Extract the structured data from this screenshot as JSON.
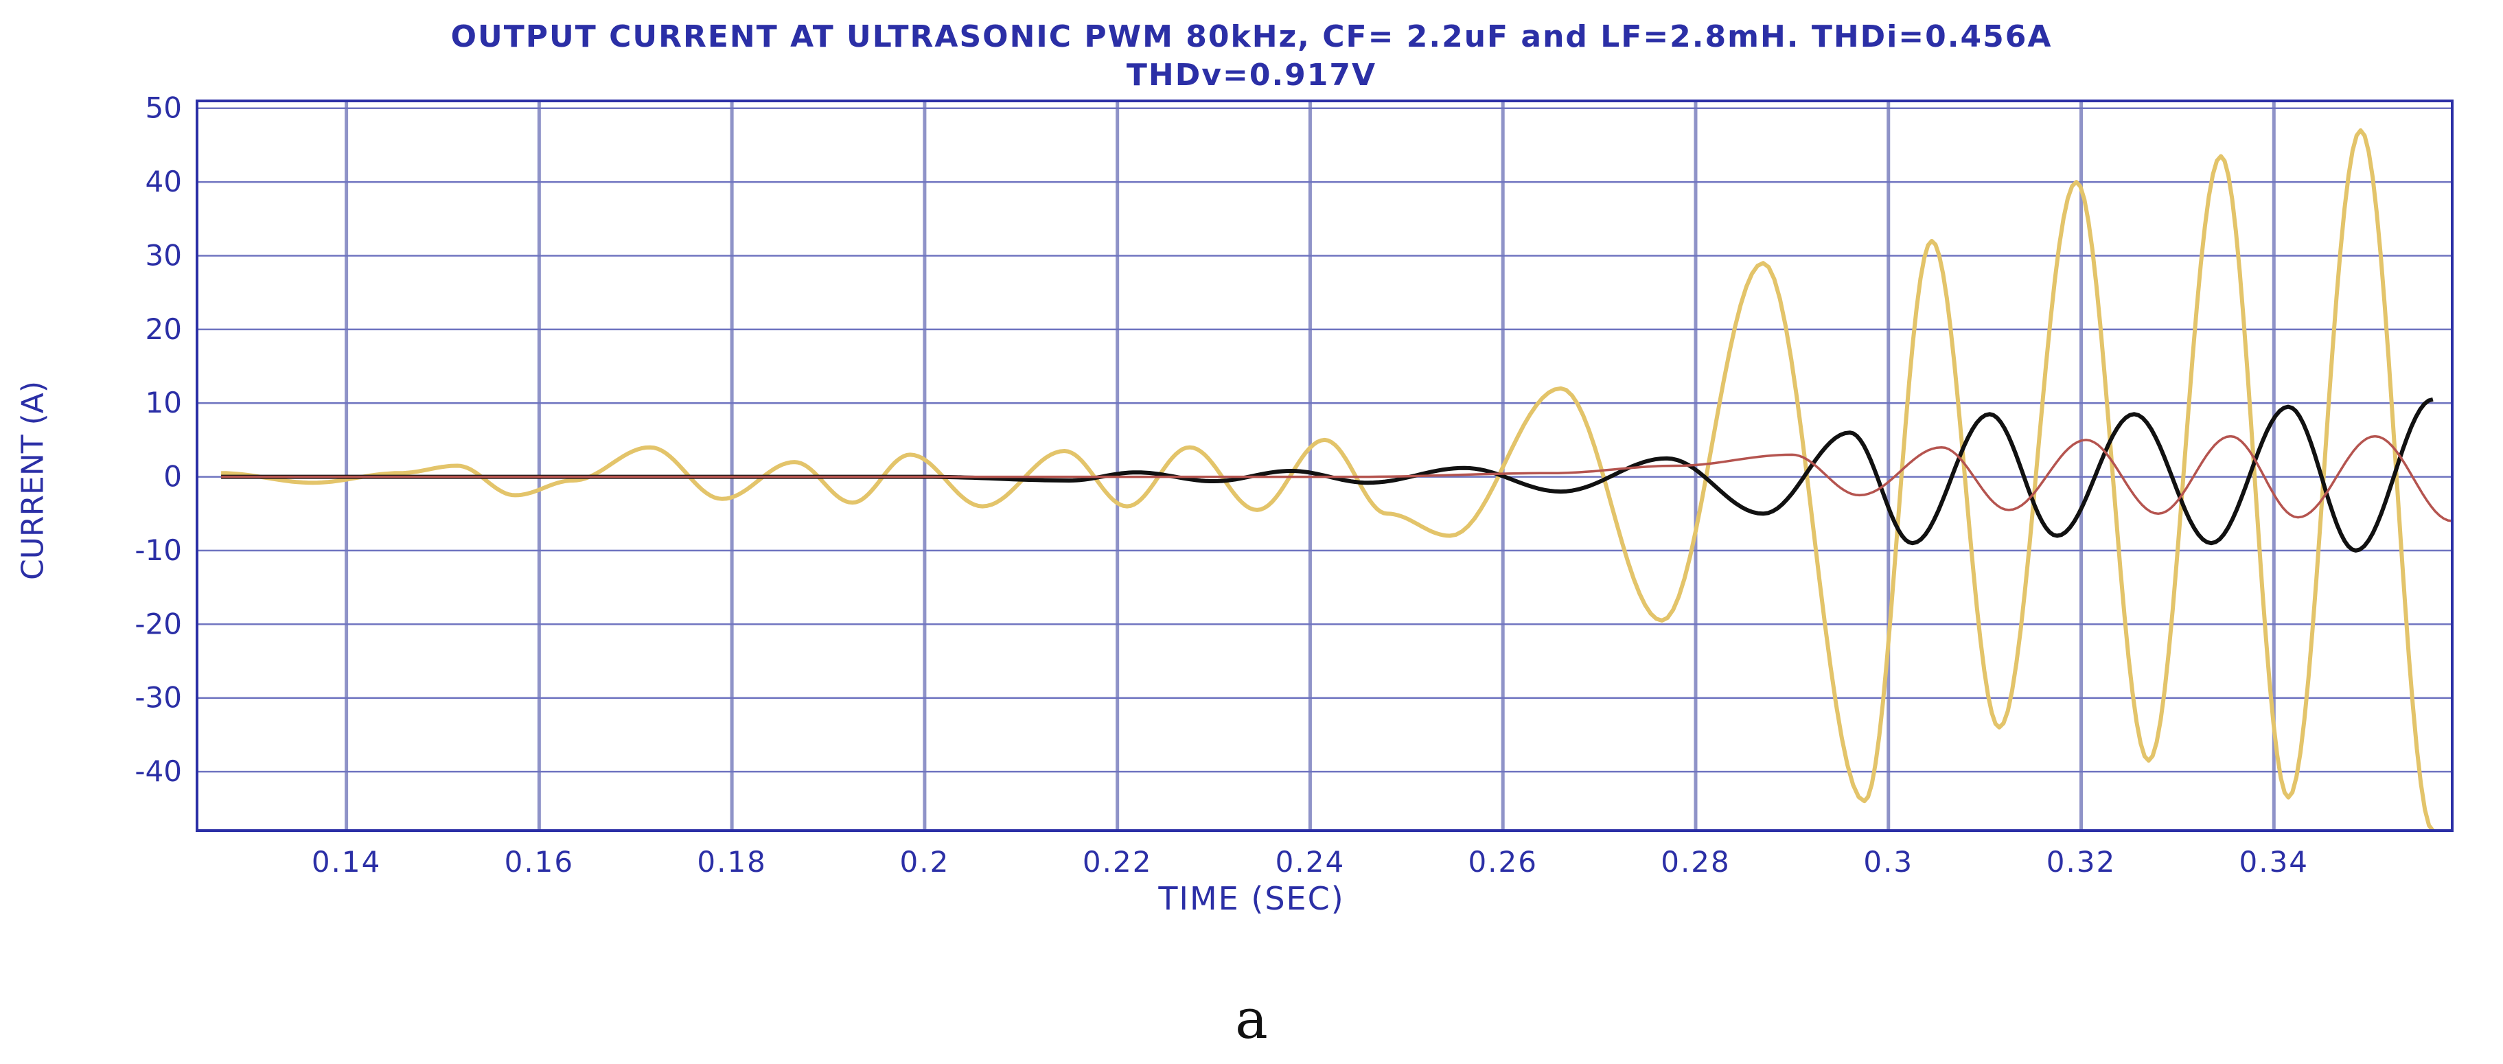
{
  "chart_data": {
    "type": "line",
    "title": "OUTPUT CURRENT AT ULTRASONIC PWM 80kHz, CF= 2.2uF and LF=2.8mH. THDi=0.456A",
    "subtitle": "THDv=0.917V",
    "xlabel": "TIME (SEC)",
    "ylabel": "CURRENT (A)",
    "xlim": [
      0.1245,
      0.3585
    ],
    "ylim": [
      -48,
      51
    ],
    "x_ticks": [
      0.14,
      0.16,
      0.18,
      0.2,
      0.22,
      0.24,
      0.26,
      0.28,
      0.3,
      0.32,
      0.34
    ],
    "x_tick_labels": [
      "0.14",
      "0.16",
      "0.18",
      "0.2",
      "0.22",
      "0.24",
      "0.26",
      "0.28",
      "0.3",
      "0.32",
      "0.34"
    ],
    "y_ticks": [
      50,
      40,
      30,
      20,
      10,
      0,
      -10,
      -20,
      -30,
      -40
    ],
    "y_tick_labels": [
      "50",
      "40",
      "30",
      "20",
      "10",
      "0",
      "-10",
      "-20",
      "-30",
      "-40"
    ],
    "grid": true,
    "legend": "none",
    "series": [
      {
        "color": "#e3c46a",
        "x": [
          0.127,
          0.1365,
          0.1455,
          0.1515,
          0.1575,
          0.1635,
          0.1715,
          0.179,
          0.1865,
          0.1925,
          0.1985,
          0.206,
          0.2145,
          0.221,
          0.2275,
          0.2345,
          0.2415,
          0.248,
          0.2545,
          0.266,
          0.2765,
          0.287,
          0.2975,
          0.3045,
          0.3115,
          0.3195,
          0.327,
          0.3345,
          0.3415,
          0.349,
          0.3565
        ],
        "y": [
          0.5,
          -0.8,
          0.5,
          1.5,
          -2.5,
          -0.5,
          4,
          -3,
          2,
          -3.5,
          3,
          -4,
          3.5,
          -4,
          4,
          -4.5,
          5,
          -5,
          -8,
          12,
          -19.5,
          29,
          -44,
          32,
          -34,
          40,
          -38.5,
          43.5,
          -43.5,
          47,
          -48
        ]
      },
      {
        "color": "#111111",
        "x": [
          0.127,
          0.17,
          0.2,
          0.215,
          0.222,
          0.23,
          0.238,
          0.246,
          0.256,
          0.266,
          0.277,
          0.287,
          0.296,
          0.3025,
          0.3105,
          0.3175,
          0.3255,
          0.3335,
          0.3415,
          0.3485,
          0.3565
        ],
        "y": [
          0,
          0,
          0,
          -0.5,
          0.6,
          -0.6,
          0.8,
          -0.8,
          1.2,
          -2,
          2.5,
          -5,
          6,
          -9,
          8.5,
          -8,
          8.5,
          -9,
          9.5,
          -10,
          10.5
        ]
      },
      {
        "color": "#b5544f",
        "x": [
          0.127,
          0.21,
          0.245,
          0.265,
          0.278,
          0.29,
          0.297,
          0.3055,
          0.3125,
          0.3205,
          0.328,
          0.3355,
          0.3425,
          0.3505,
          0.3585
        ],
        "y": [
          0,
          0,
          0,
          0.5,
          1.5,
          3,
          -2.5,
          4,
          -4.5,
          5,
          -5,
          5.5,
          -5.5,
          5.5,
          -6
        ]
      }
    ]
  },
  "caption": "a"
}
